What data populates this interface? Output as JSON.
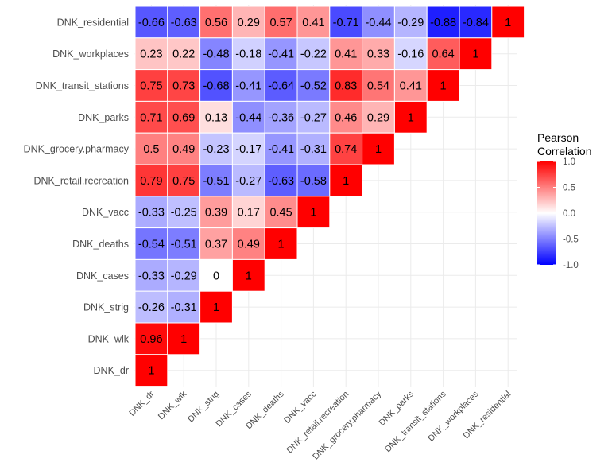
{
  "chart_data": {
    "type": "heatmap",
    "title": "",
    "xlabel": "",
    "ylabel": "",
    "variables": [
      "DNK_dr",
      "DNK_wlk",
      "DNK_strig",
      "DNK_cases",
      "DNK_deaths",
      "DNK_vacc",
      "DNK_retail.recreation",
      "DNK_grocery.pharmacy",
      "DNK_parks",
      "DNK_transit_stations",
      "DNK_workplaces",
      "DNK_residential"
    ],
    "cells": [
      {
        "row": "DNK_residential",
        "col": "DNK_dr",
        "value": -0.66,
        "label": "-0.66"
      },
      {
        "row": "DNK_residential",
        "col": "DNK_wlk",
        "value": -0.63,
        "label": "-0.63"
      },
      {
        "row": "DNK_residential",
        "col": "DNK_strig",
        "value": 0.56,
        "label": "0.56"
      },
      {
        "row": "DNK_residential",
        "col": "DNK_cases",
        "value": 0.29,
        "label": "0.29"
      },
      {
        "row": "DNK_residential",
        "col": "DNK_deaths",
        "value": 0.57,
        "label": "0.57"
      },
      {
        "row": "DNK_residential",
        "col": "DNK_vacc",
        "value": 0.41,
        "label": "0.41"
      },
      {
        "row": "DNK_residential",
        "col": "DNK_retail.recreation",
        "value": -0.71,
        "label": "-0.71"
      },
      {
        "row": "DNK_residential",
        "col": "DNK_grocery.pharmacy",
        "value": -0.44,
        "label": "-0.44"
      },
      {
        "row": "DNK_residential",
        "col": "DNK_parks",
        "value": -0.29,
        "label": "-0.29"
      },
      {
        "row": "DNK_residential",
        "col": "DNK_transit_stations",
        "value": -0.88,
        "label": "-0.88"
      },
      {
        "row": "DNK_residential",
        "col": "DNK_workplaces",
        "value": -0.84,
        "label": "-0.84"
      },
      {
        "row": "DNK_residential",
        "col": "DNK_residential",
        "value": 1,
        "label": "1"
      },
      {
        "row": "DNK_workplaces",
        "col": "DNK_dr",
        "value": 0.23,
        "label": "0.23"
      },
      {
        "row": "DNK_workplaces",
        "col": "DNK_wlk",
        "value": 0.22,
        "label": "0.22"
      },
      {
        "row": "DNK_workplaces",
        "col": "DNK_strig",
        "value": -0.48,
        "label": "-0.48"
      },
      {
        "row": "DNK_workplaces",
        "col": "DNK_cases",
        "value": -0.18,
        "label": "-0.18"
      },
      {
        "row": "DNK_workplaces",
        "col": "DNK_deaths",
        "value": -0.41,
        "label": "-0.41"
      },
      {
        "row": "DNK_workplaces",
        "col": "DNK_vacc",
        "value": -0.22,
        "label": "-0.22"
      },
      {
        "row": "DNK_workplaces",
        "col": "DNK_retail.recreation",
        "value": 0.41,
        "label": "0.41"
      },
      {
        "row": "DNK_workplaces",
        "col": "DNK_grocery.pharmacy",
        "value": 0.33,
        "label": "0.33"
      },
      {
        "row": "DNK_workplaces",
        "col": "DNK_parks",
        "value": -0.16,
        "label": "-0.16"
      },
      {
        "row": "DNK_workplaces",
        "col": "DNK_transit_stations",
        "value": 0.64,
        "label": "0.64"
      },
      {
        "row": "DNK_workplaces",
        "col": "DNK_workplaces",
        "value": 1,
        "label": "1"
      },
      {
        "row": "DNK_transit_stations",
        "col": "DNK_dr",
        "value": 0.75,
        "label": "0.75"
      },
      {
        "row": "DNK_transit_stations",
        "col": "DNK_wlk",
        "value": 0.73,
        "label": "0.73"
      },
      {
        "row": "DNK_transit_stations",
        "col": "DNK_strig",
        "value": -0.68,
        "label": "-0.68"
      },
      {
        "row": "DNK_transit_stations",
        "col": "DNK_cases",
        "value": -0.41,
        "label": "-0.41"
      },
      {
        "row": "DNK_transit_stations",
        "col": "DNK_deaths",
        "value": -0.64,
        "label": "-0.64"
      },
      {
        "row": "DNK_transit_stations",
        "col": "DNK_vacc",
        "value": -0.52,
        "label": "-0.52"
      },
      {
        "row": "DNK_transit_stations",
        "col": "DNK_retail.recreation",
        "value": 0.83,
        "label": "0.83"
      },
      {
        "row": "DNK_transit_stations",
        "col": "DNK_grocery.pharmacy",
        "value": 0.54,
        "label": "0.54"
      },
      {
        "row": "DNK_transit_stations",
        "col": "DNK_parks",
        "value": 0.41,
        "label": "0.41"
      },
      {
        "row": "DNK_transit_stations",
        "col": "DNK_transit_stations",
        "value": 1,
        "label": "1"
      },
      {
        "row": "DNK_parks",
        "col": "DNK_dr",
        "value": 0.71,
        "label": "0.71"
      },
      {
        "row": "DNK_parks",
        "col": "DNK_wlk",
        "value": 0.69,
        "label": "0.69"
      },
      {
        "row": "DNK_parks",
        "col": "DNK_strig",
        "value": 0.13,
        "label": "0.13"
      },
      {
        "row": "DNK_parks",
        "col": "DNK_cases",
        "value": -0.44,
        "label": "-0.44"
      },
      {
        "row": "DNK_parks",
        "col": "DNK_deaths",
        "value": -0.36,
        "label": "-0.36"
      },
      {
        "row": "DNK_parks",
        "col": "DNK_vacc",
        "value": -0.27,
        "label": "-0.27"
      },
      {
        "row": "DNK_parks",
        "col": "DNK_retail.recreation",
        "value": 0.46,
        "label": "0.46"
      },
      {
        "row": "DNK_parks",
        "col": "DNK_grocery.pharmacy",
        "value": 0.29,
        "label": "0.29"
      },
      {
        "row": "DNK_parks",
        "col": "DNK_parks",
        "value": 1,
        "label": "1"
      },
      {
        "row": "DNK_grocery.pharmacy",
        "col": "DNK_dr",
        "value": 0.5,
        "label": "0.5"
      },
      {
        "row": "DNK_grocery.pharmacy",
        "col": "DNK_wlk",
        "value": 0.49,
        "label": "0.49"
      },
      {
        "row": "DNK_grocery.pharmacy",
        "col": "DNK_strig",
        "value": -0.23,
        "label": "-0.23"
      },
      {
        "row": "DNK_grocery.pharmacy",
        "col": "DNK_cases",
        "value": -0.17,
        "label": "-0.17"
      },
      {
        "row": "DNK_grocery.pharmacy",
        "col": "DNK_deaths",
        "value": -0.41,
        "label": "-0.41"
      },
      {
        "row": "DNK_grocery.pharmacy",
        "col": "DNK_vacc",
        "value": -0.31,
        "label": "-0.31"
      },
      {
        "row": "DNK_grocery.pharmacy",
        "col": "DNK_retail.recreation",
        "value": 0.74,
        "label": "0.74"
      },
      {
        "row": "DNK_grocery.pharmacy",
        "col": "DNK_grocery.pharmacy",
        "value": 1,
        "label": "1"
      },
      {
        "row": "DNK_retail.recreation",
        "col": "DNK_dr",
        "value": 0.79,
        "label": "0.79"
      },
      {
        "row": "DNK_retail.recreation",
        "col": "DNK_wlk",
        "value": 0.75,
        "label": "0.75"
      },
      {
        "row": "DNK_retail.recreation",
        "col": "DNK_strig",
        "value": -0.51,
        "label": "-0.51"
      },
      {
        "row": "DNK_retail.recreation",
        "col": "DNK_cases",
        "value": -0.27,
        "label": "-0.27"
      },
      {
        "row": "DNK_retail.recreation",
        "col": "DNK_deaths",
        "value": -0.63,
        "label": "-0.63"
      },
      {
        "row": "DNK_retail.recreation",
        "col": "DNK_vacc",
        "value": -0.58,
        "label": "-0.58"
      },
      {
        "row": "DNK_retail.recreation",
        "col": "DNK_retail.recreation",
        "value": 1,
        "label": "1"
      },
      {
        "row": "DNK_vacc",
        "col": "DNK_dr",
        "value": -0.33,
        "label": "-0.33"
      },
      {
        "row": "DNK_vacc",
        "col": "DNK_wlk",
        "value": -0.25,
        "label": "-0.25"
      },
      {
        "row": "DNK_vacc",
        "col": "DNK_strig",
        "value": 0.39,
        "label": "0.39"
      },
      {
        "row": "DNK_vacc",
        "col": "DNK_cases",
        "value": 0.17,
        "label": "0.17"
      },
      {
        "row": "DNK_vacc",
        "col": "DNK_deaths",
        "value": 0.45,
        "label": "0.45"
      },
      {
        "row": "DNK_vacc",
        "col": "DNK_vacc",
        "value": 1,
        "label": "1"
      },
      {
        "row": "DNK_deaths",
        "col": "DNK_dr",
        "value": -0.54,
        "label": "-0.54"
      },
      {
        "row": "DNK_deaths",
        "col": "DNK_wlk",
        "value": -0.51,
        "label": "-0.51"
      },
      {
        "row": "DNK_deaths",
        "col": "DNK_strig",
        "value": 0.37,
        "label": "0.37"
      },
      {
        "row": "DNK_deaths",
        "col": "DNK_cases",
        "value": 0.49,
        "label": "0.49"
      },
      {
        "row": "DNK_deaths",
        "col": "DNK_deaths",
        "value": 1,
        "label": "1"
      },
      {
        "row": "DNK_cases",
        "col": "DNK_dr",
        "value": -0.33,
        "label": "-0.33"
      },
      {
        "row": "DNK_cases",
        "col": "DNK_wlk",
        "value": -0.29,
        "label": "-0.29"
      },
      {
        "row": "DNK_cases",
        "col": "DNK_strig",
        "value": 0,
        "label": "0"
      },
      {
        "row": "DNK_cases",
        "col": "DNK_cases",
        "value": 1,
        "label": "1"
      },
      {
        "row": "DNK_strig",
        "col": "DNK_dr",
        "value": -0.26,
        "label": "-0.26"
      },
      {
        "row": "DNK_strig",
        "col": "DNK_wlk",
        "value": -0.31,
        "label": "-0.31"
      },
      {
        "row": "DNK_strig",
        "col": "DNK_strig",
        "value": 1,
        "label": "1"
      },
      {
        "row": "DNK_wlk",
        "col": "DNK_dr",
        "value": 0.96,
        "label": "0.96"
      },
      {
        "row": "DNK_wlk",
        "col": "DNK_wlk",
        "value": 1,
        "label": "1"
      },
      {
        "row": "DNK_dr",
        "col": "DNK_dr",
        "value": 1,
        "label": "1"
      }
    ],
    "color_scale": {
      "low": "#0000FF",
      "mid": "#FFFFFF",
      "high": "#FF0000",
      "limits": [
        -1,
        1
      ]
    },
    "legend": {
      "title_lines": [
        "Pearson",
        "Correlation"
      ],
      "ticks": [
        1.0,
        0.5,
        0.0,
        -0.5,
        -1.0
      ],
      "tick_labels": [
        "1.0",
        "0.5",
        "0.0",
        "-0.5",
        "-1.0"
      ],
      "position": "right"
    },
    "grid": true
  }
}
